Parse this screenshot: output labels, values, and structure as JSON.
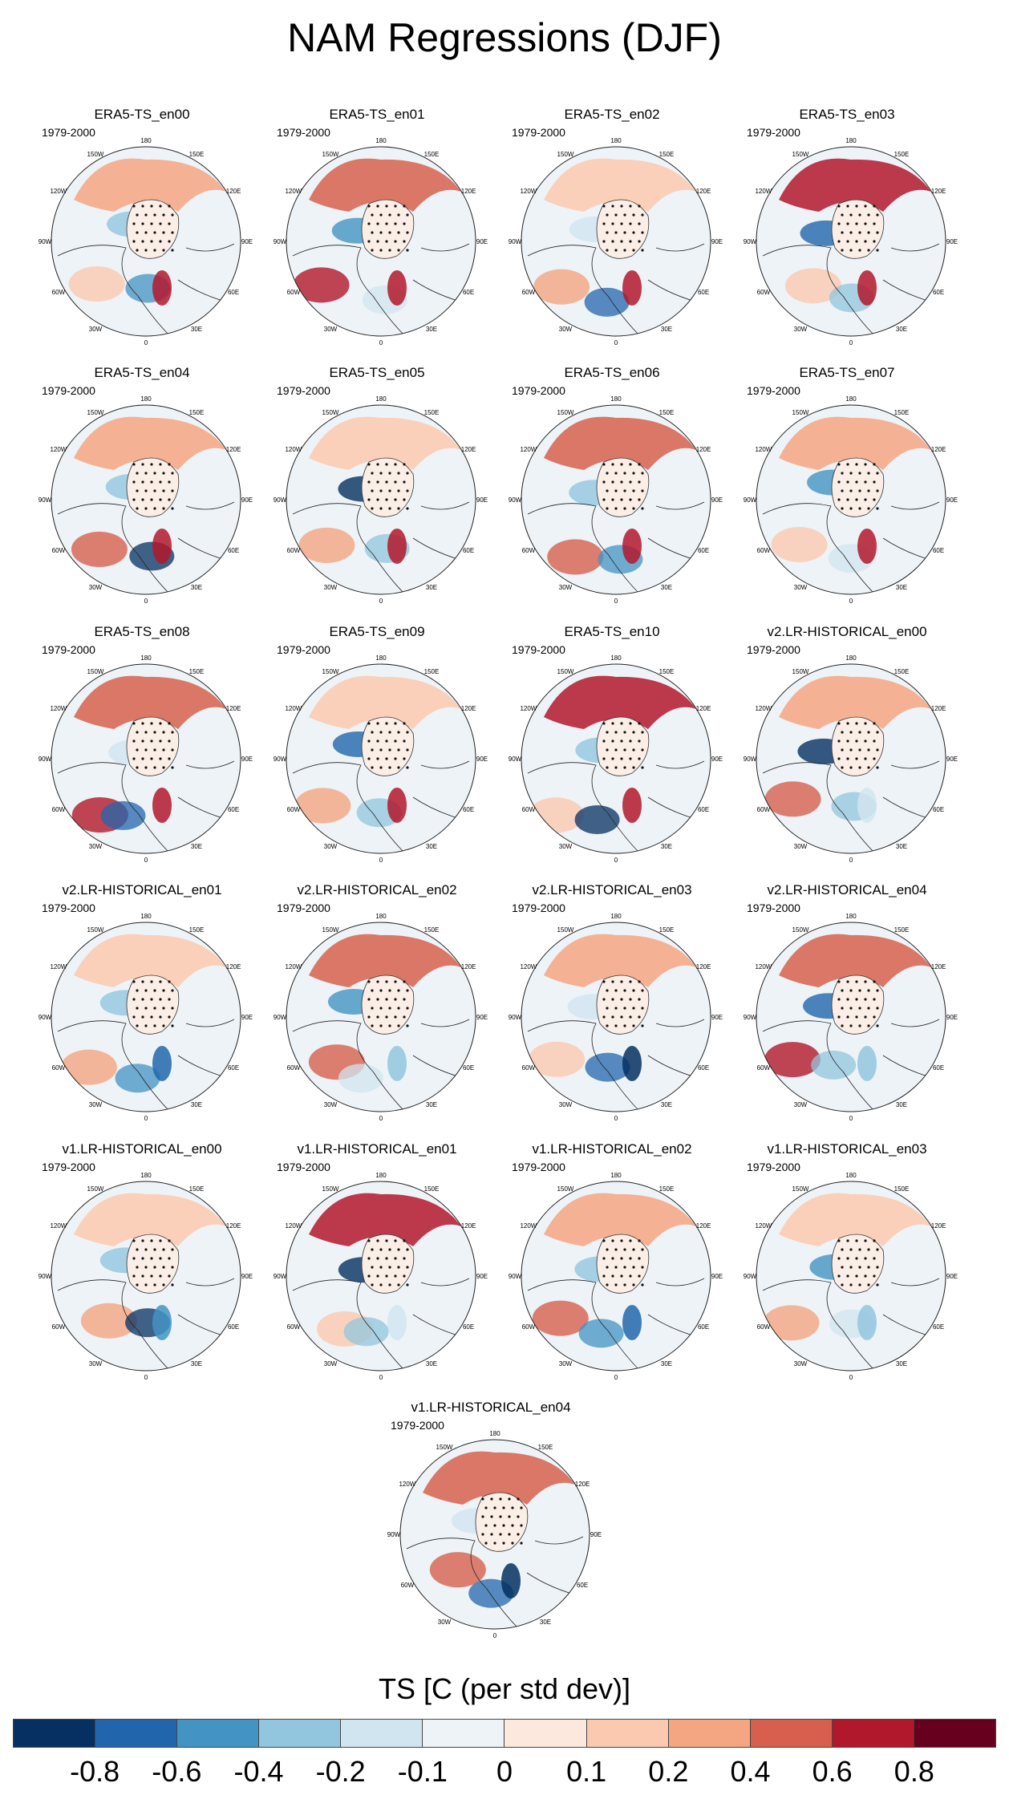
{
  "title": "NAM Regressions (DJF)",
  "period": "1979-2000",
  "lon_labels": [
    "180",
    "150E",
    "120E",
    "90E",
    "60E",
    "30E",
    "0",
    "30W",
    "60W",
    "90W",
    "120W",
    "150W"
  ],
  "panels": [
    {
      "title": "ERA5-TS_en00"
    },
    {
      "title": "ERA5-TS_en01"
    },
    {
      "title": "ERA5-TS_en02"
    },
    {
      "title": "ERA5-TS_en03"
    },
    {
      "title": "ERA5-TS_en04"
    },
    {
      "title": "ERA5-TS_en05"
    },
    {
      "title": "ERA5-TS_en06"
    },
    {
      "title": "ERA5-TS_en07"
    },
    {
      "title": "ERA5-TS_en08"
    },
    {
      "title": "ERA5-TS_en09"
    },
    {
      "title": "ERA5-TS_en10"
    },
    {
      "title": "v2.LR-HISTORICAL_en00"
    },
    {
      "title": "v2.LR-HISTORICAL_en01"
    },
    {
      "title": "v2.LR-HISTORICAL_en02"
    },
    {
      "title": "v2.LR-HISTORICAL_en03"
    },
    {
      "title": "v2.LR-HISTORICAL_en04"
    },
    {
      "title": "v1.LR-HISTORICAL_en00"
    },
    {
      "title": "v1.LR-HISTORICAL_en01"
    },
    {
      "title": "v1.LR-HISTORICAL_en02"
    },
    {
      "title": "v1.LR-HISTORICAL_en03"
    },
    {
      "title": "v1.LR-HISTORICAL_en04"
    }
  ],
  "colorbar": {
    "title": "TS [C (per std dev)]",
    "tick_labels": [
      "-0.8",
      "-0.6",
      "-0.4",
      "-0.2",
      "-0.1",
      "0",
      "0.1",
      "0.2",
      "0.4",
      "0.6",
      "0.8"
    ],
    "colors": [
      "#053061",
      "#2166ac",
      "#4393c3",
      "#92c5de",
      "#d1e5f0",
      "#eef3f7",
      "#fde8de",
      "#fbc9b0",
      "#f4a582",
      "#d6604d",
      "#b2182b",
      "#67001f"
    ]
  }
}
